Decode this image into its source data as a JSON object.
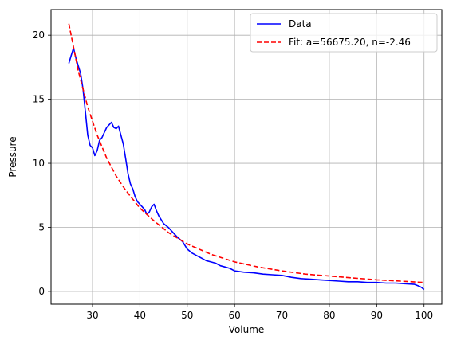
{
  "chart_data": {
    "type": "line",
    "xlabel": "Volume",
    "ylabel": "Pressure",
    "xlim": [
      21.25,
      103.75
    ],
    "ylim": [
      -1.0,
      22.0
    ],
    "xticks": [
      30,
      40,
      50,
      60,
      70,
      80,
      90,
      100
    ],
    "yticks": [
      0,
      5,
      10,
      15,
      20
    ],
    "grid": true,
    "legend_position": "top-right",
    "series": [
      {
        "name": "Data",
        "style": "solid",
        "color": "#0000ff",
        "x": [
          25,
          25.5,
          26,
          26.5,
          27,
          27.5,
          28,
          28.5,
          29,
          29.5,
          30,
          30.5,
          31,
          31.5,
          32,
          32.5,
          33,
          33.5,
          34,
          34.5,
          35,
          35.5,
          36,
          36.5,
          37,
          37.5,
          38,
          38.5,
          39,
          39.5,
          40,
          40.5,
          41,
          41.5,
          42,
          42.5,
          43,
          43.5,
          44,
          44.5,
          45,
          46,
          47,
          48,
          49,
          50,
          51,
          52,
          53,
          54,
          55,
          56,
          57,
          58,
          59,
          60,
          62,
          64,
          66,
          68,
          70,
          72,
          74,
          76,
          78,
          80,
          82,
          84,
          86,
          88,
          90,
          92,
          94,
          96,
          98,
          99,
          99.5,
          100
        ],
        "y": [
          17.8,
          18.4,
          19.0,
          18.2,
          17.6,
          17.0,
          15.8,
          14.0,
          12.2,
          11.4,
          11.2,
          10.6,
          11.0,
          11.8,
          12.0,
          12.4,
          12.8,
          13.0,
          13.2,
          12.8,
          12.7,
          12.9,
          12.2,
          11.5,
          10.4,
          9.2,
          8.4,
          8.0,
          7.4,
          7.0,
          6.8,
          6.6,
          6.4,
          6.0,
          6.2,
          6.6,
          6.8,
          6.3,
          5.9,
          5.6,
          5.3,
          5.0,
          4.6,
          4.2,
          3.9,
          3.3,
          3.0,
          2.8,
          2.6,
          2.4,
          2.3,
          2.2,
          2.0,
          1.9,
          1.8,
          1.6,
          1.5,
          1.45,
          1.35,
          1.3,
          1.25,
          1.1,
          1.0,
          0.95,
          0.9,
          0.85,
          0.8,
          0.75,
          0.75,
          0.7,
          0.7,
          0.65,
          0.65,
          0.6,
          0.55,
          0.4,
          0.3,
          0.15
        ]
      },
      {
        "name": "Fit: a=56675.20, n=-2.46",
        "style": "dashed",
        "color": "#ff0000",
        "equation": "y = 56675.20 * x^-2.46",
        "x": [
          25,
          27,
          29,
          31,
          33,
          35,
          37,
          40,
          43,
          46,
          50,
          55,
          60,
          65,
          70,
          75,
          80,
          85,
          90,
          95,
          100
        ],
        "y": [
          20.9,
          17.2,
          14.4,
          12.2,
          10.4,
          9.0,
          7.9,
          6.5,
          5.5,
          4.6,
          3.7,
          2.9,
          2.3,
          1.9,
          1.6,
          1.35,
          1.2,
          1.05,
          0.9,
          0.8,
          0.7
        ]
      }
    ]
  }
}
